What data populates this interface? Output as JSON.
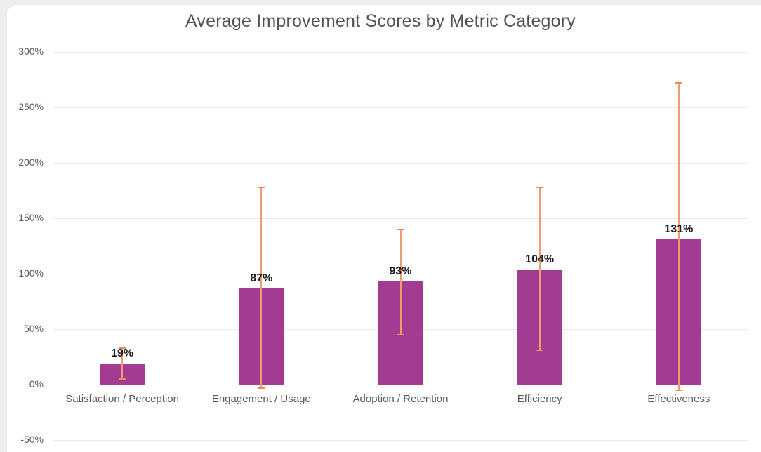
{
  "page": {
    "background_color": "#eeeeef",
    "card_color": "#ffffff"
  },
  "chart_data": {
    "type": "bar",
    "title": "Average Improvement Scores by Metric Category",
    "categories": [
      "Satisfaction / Perception",
      "Engagement / Usage",
      "Adoption / Retention",
      "Efficiency",
      "Effectiveness"
    ],
    "values": [
      19,
      87,
      93,
      104,
      131
    ],
    "value_labels": [
      "19%",
      "87%",
      "93%",
      "104%",
      "131%"
    ],
    "error_low": [
      5,
      -3,
      45,
      31,
      -5
    ],
    "error_high": [
      33,
      178,
      140,
      178,
      272
    ],
    "xlabel": "",
    "ylabel": "",
    "ylim": [
      -50,
      300
    ],
    "ytick_step": 50,
    "ytick_labels": [
      "300%",
      "250%",
      "200%",
      "150%",
      "100%",
      "50%",
      "0%",
      "-50%"
    ],
    "grid": true,
    "legend": false,
    "bar_color": "#A23C92",
    "error_line_color": "#F19B6E",
    "error_cap_color": "#EE8A50",
    "gridline_color": "#e9e9e9",
    "title_color": "#525252",
    "axis_label_color": "#595959",
    "value_label_color": "#1c1c1c"
  }
}
